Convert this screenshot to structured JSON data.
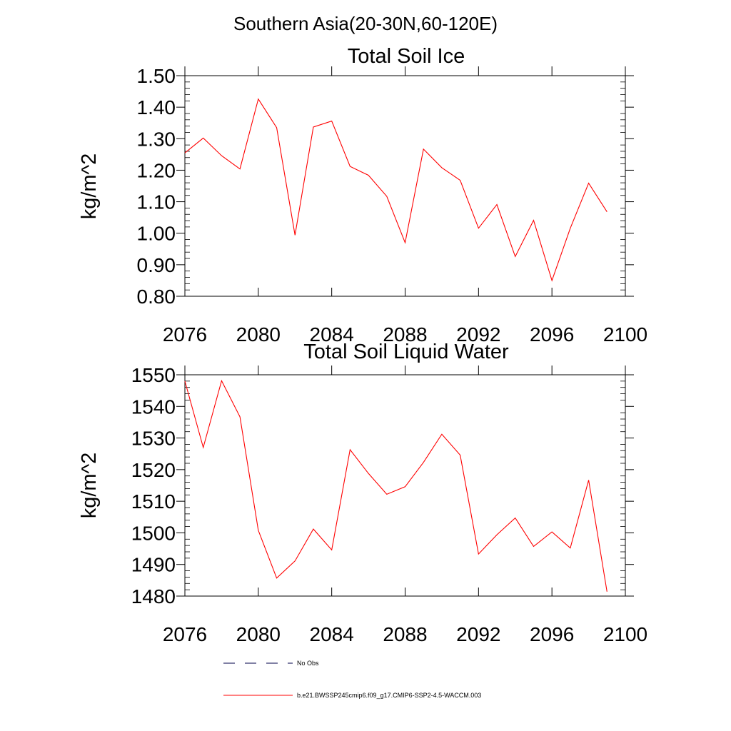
{
  "suptitle": "Southern Asia(20-30N,60-120E)",
  "chart_data": [
    {
      "type": "line",
      "title": "Total Soil Ice",
      "ylabel": "kg/m^2",
      "xlim": [
        2076,
        2100
      ],
      "ylim": [
        0.8,
        1.5
      ],
      "xticks": [
        "2076",
        "2080",
        "2084",
        "2088",
        "2092",
        "2096",
        "2100"
      ],
      "yticks": [
        "0.80",
        "0.90",
        "1.00",
        "1.10",
        "1.20",
        "1.30",
        "1.40",
        "1.50"
      ],
      "grid": false,
      "series": [
        {
          "name": "b.e21.BWSSP245cmip6.f09_g17.CMIP6-SSP2-4.5-WACCM.003",
          "color": "#ff0000",
          "x": [
            2076,
            2077,
            2078,
            2079,
            2080,
            2081,
            2082,
            2083,
            2084,
            2085,
            2086,
            2087,
            2088,
            2089,
            2090,
            2091,
            2092,
            2093,
            2094,
            2095,
            2096,
            2097,
            2098,
            2099
          ],
          "y": [
            1.255,
            1.302,
            1.246,
            1.204,
            1.426,
            1.335,
            0.994,
            1.337,
            1.356,
            1.212,
            1.184,
            1.117,
            0.97,
            1.267,
            1.208,
            1.168,
            1.016,
            1.091,
            0.926,
            1.041,
            0.85,
            1.016,
            1.159,
            1.068
          ]
        }
      ]
    },
    {
      "type": "line",
      "title": "Total Soil Liquid Water",
      "ylabel": "kg/m^2",
      "xlim": [
        2076,
        2100
      ],
      "ylim": [
        1480,
        1550
      ],
      "xticks": [
        "2076",
        "2080",
        "2084",
        "2088",
        "2092",
        "2096",
        "2100"
      ],
      "yticks": [
        "1480",
        "1490",
        "1500",
        "1510",
        "1520",
        "1530",
        "1540",
        "1550"
      ],
      "grid": false,
      "series": [
        {
          "name": "b.e21.BWSSP245cmip6.f09_g17.CMIP6-SSP2-4.5-WACCM.003",
          "color": "#ff0000",
          "x": [
            2076,
            2077,
            2078,
            2079,
            2080,
            2081,
            2082,
            2083,
            2084,
            2085,
            2086,
            2087,
            2088,
            2089,
            2090,
            2091,
            2092,
            2093,
            2094,
            2095,
            2096,
            2097,
            2098,
            2099
          ],
          "y": [
            1548.0,
            1527.0,
            1548.1,
            1536.7,
            1500.8,
            1485.7,
            1491.1,
            1501.2,
            1494.6,
            1526.3,
            1518.8,
            1512.2,
            1514.6,
            1522.3,
            1531.2,
            1524.6,
            1493.3,
            1499.4,
            1504.7,
            1495.7,
            1500.3,
            1495.2,
            1516.7,
            1481.4
          ]
        }
      ]
    }
  ],
  "legend": {
    "items": [
      {
        "label": "No Obs",
        "style": "dashed",
        "color": "#00004a"
      },
      {
        "label": "b.e21.BWSSP245cmip6.f09_g17.CMIP6-SSP2-4.5-WACCM.003",
        "style": "solid",
        "color": "#ff0000"
      }
    ]
  }
}
